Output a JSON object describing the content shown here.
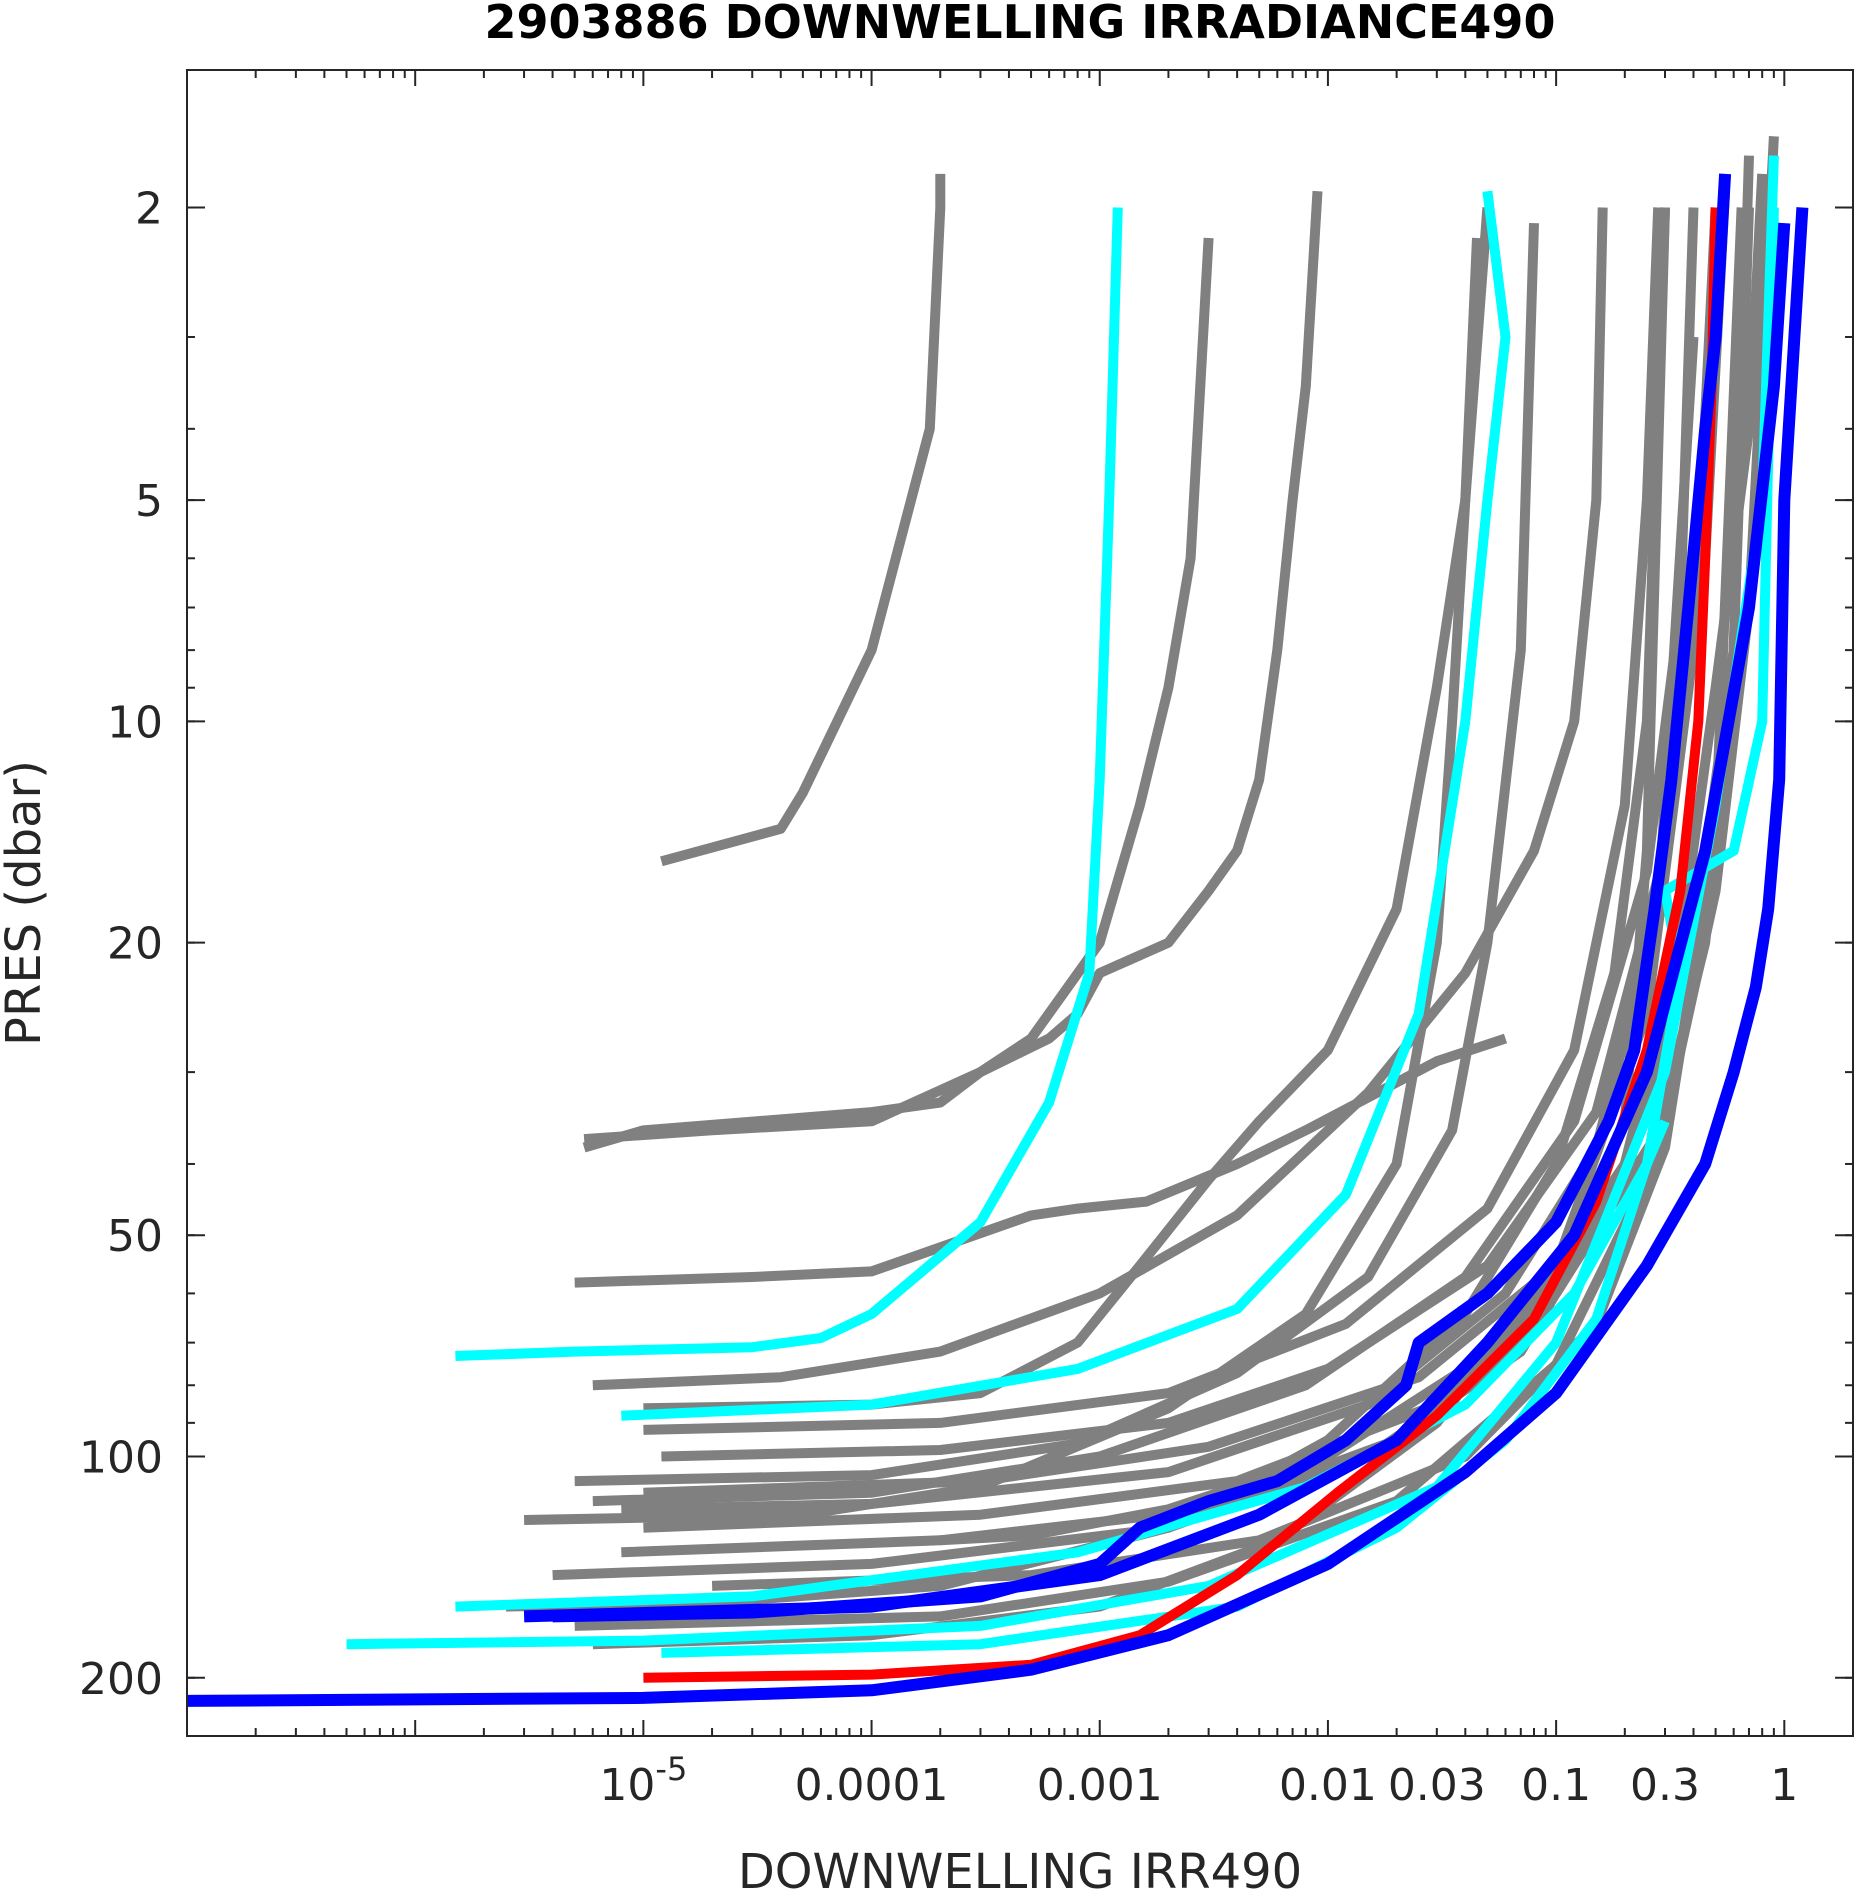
{
  "chart_data": {
    "type": "line",
    "title": "2903886  DOWNWELLING IRRADIANCE490",
    "xlabel": "DOWNWELLING IRR490",
    "ylabel": "PRES (dbar)",
    "x_scale": "log",
    "y_scale": "log",
    "y_reversed": true,
    "xlim": [
      1e-07,
      2
    ],
    "ylim": [
      1.3,
      240
    ],
    "x_tick_labels": [
      {
        "value": 1e-05,
        "label": "10",
        "exponent": "-5"
      },
      {
        "value": 0.0001,
        "label": "0.0001"
      },
      {
        "value": 0.001,
        "label": "0.001"
      },
      {
        "value": 0.01,
        "label": "0.01"
      },
      {
        "value": 0.03,
        "label": "0.03"
      },
      {
        "value": 0.1,
        "label": "0.1"
      },
      {
        "value": 0.3,
        "label": "0.3"
      },
      {
        "value": 1,
        "label": "1"
      }
    ],
    "y_ticks": [
      {
        "value": 2,
        "label": "2"
      },
      {
        "value": 5,
        "label": "5"
      },
      {
        "value": 10,
        "label": "10"
      },
      {
        "value": 20,
        "label": "20"
      },
      {
        "value": 50,
        "label": "50"
      },
      {
        "value": 100,
        "label": "100"
      },
      {
        "value": 200,
        "label": "200"
      }
    ],
    "colors": {
      "grey": "#808080",
      "cyan": "#00ffff",
      "blue": "#0000ff",
      "red": "#ff0000"
    },
    "series": [
      {
        "color": "grey",
        "x": [
          1.2e-05,
          4e-05,
          5e-05,
          0.0001,
          0.00018,
          0.0002,
          0.0002
        ],
        "y": [
          15.5,
          14,
          12.5,
          8,
          4,
          2,
          1.8
        ]
      },
      {
        "color": "grey",
        "x": [
          5.5e-06,
          1e-05,
          0.0001,
          0.0002,
          0.0003,
          0.0005,
          0.001,
          0.0015,
          0.002,
          0.0025,
          0.003
        ],
        "y": [
          38,
          36,
          34,
          33,
          30,
          27,
          20,
          13,
          9,
          6,
          2.2
        ]
      },
      {
        "color": "grey",
        "x": [
          5.5e-06,
          2e-05,
          0.0001,
          0.0003,
          0.0006,
          0.0008,
          0.001,
          0.002,
          0.003,
          0.004,
          0.005,
          0.006,
          0.007,
          0.008,
          0.009
        ],
        "y": [
          37,
          36,
          35,
          30,
          27,
          25,
          22,
          20,
          17,
          15,
          12,
          8,
          5,
          3.5,
          1.9
        ]
      },
      {
        "color": "grey",
        "x": [
          5e-06,
          3e-05,
          0.0001,
          0.0005,
          0.0008,
          0.0016,
          0.004,
          0.008,
          0.03,
          0.06
        ],
        "y": [
          58,
          57,
          56,
          47,
          46,
          45,
          40,
          36,
          29,
          27
        ]
      },
      {
        "color": "grey",
        "x": [
          1e-05,
          0.0001,
          0.0003,
          0.0008,
          0.0015,
          0.003,
          0.005,
          0.01,
          0.02,
          0.03,
          0.04,
          0.05
        ],
        "y": [
          86,
          85,
          82,
          70,
          55,
          42,
          35,
          28,
          18,
          9,
          5,
          2
        ]
      },
      {
        "color": "grey",
        "x": [
          6e-06,
          4e-05,
          0.0002,
          0.001,
          0.004,
          0.015,
          0.04,
          0.08,
          0.12,
          0.15,
          0.16
        ],
        "y": [
          80,
          78,
          72,
          60,
          47,
          32,
          22,
          15,
          10,
          5,
          2
        ]
      },
      {
        "color": "grey",
        "x": [
          5e-06,
          0.0001,
          0.0008,
          0.004,
          0.015,
          0.035,
          0.05,
          0.07,
          0.08
        ],
        "y": [
          108,
          106,
          96,
          77,
          57,
          36,
          20,
          8,
          2.1
        ]
      },
      {
        "color": "grey",
        "x": [
          3e-06,
          5e-05,
          0.0003,
          0.002,
          0.008,
          0.02,
          0.03,
          0.035,
          0.04,
          0.045
        ],
        "y": [
          122,
          120,
          110,
          86,
          64,
          40,
          20,
          10,
          5,
          2.2
        ]
      },
      {
        "color": "grey",
        "x": [
          2.5e-06,
          2e-05,
          0.0002,
          0.002,
          0.01,
          0.04,
          0.1,
          0.18,
          0.25,
          0.3
        ],
        "y": [
          160,
          158,
          150,
          125,
          95,
          64,
          40,
          22,
          10,
          2
        ]
      },
      {
        "color": "grey",
        "x": [
          6e-06,
          0.0001,
          0.001,
          0.006,
          0.03,
          0.1,
          0.25,
          0.4,
          0.5
        ],
        "y": [
          180,
          175,
          160,
          130,
          90,
          55,
          25,
          8,
          2
        ]
      },
      {
        "color": "grey",
        "x": [
          4e-06,
          0.0001,
          0.002,
          0.015,
          0.07,
          0.2,
          0.4,
          0.6,
          0.7
        ],
        "y": [
          145,
          140,
          125,
          100,
          72,
          42,
          20,
          8,
          1.7
        ]
      },
      {
        "color": "grey",
        "x": [
          8e-06,
          0.0002,
          0.003,
          0.02,
          0.08,
          0.2,
          0.35,
          0.5,
          0.7,
          0.8
        ],
        "y": [
          135,
          130,
          118,
          95,
          68,
          40,
          20,
          9,
          4,
          1.8
        ]
      },
      {
        "color": "grey",
        "x": [
          1e-05,
          0.0003,
          0.004,
          0.03,
          0.1,
          0.3,
          0.5,
          0.7,
          0.9
        ],
        "y": [
          125,
          120,
          108,
          85,
          60,
          35,
          17,
          7,
          1.6
        ]
      },
      {
        "color": "grey",
        "x": [
          5e-06,
          0.0002,
          0.002,
          0.02,
          0.1,
          0.25,
          0.45,
          0.6,
          0.7
        ],
        "y": [
          170,
          165,
          148,
          115,
          75,
          42,
          20,
          8,
          2
        ]
      },
      {
        "color": "grey",
        "x": [
          2e-05,
          0.0005,
          0.005,
          0.04,
          0.15,
          0.3,
          0.5,
          0.65
        ],
        "y": [
          150,
          145,
          130,
          100,
          66,
          38,
          14,
          2
        ]
      },
      {
        "color": "grey",
        "x": [
          6e-06,
          0.0001,
          0.001,
          0.008,
          0.04,
          0.12,
          0.25,
          0.35,
          0.4
        ],
        "y": [
          115,
          112,
          100,
          80,
          57,
          35,
          16,
          7,
          2
        ]
      },
      {
        "color": "grey",
        "x": [
          1.2e-05,
          0.0002,
          0.002,
          0.01,
          0.05,
          0.15,
          0.3,
          0.45,
          0.55
        ],
        "y": [
          100,
          98,
          90,
          76,
          55,
          34,
          15,
          6,
          1.9
        ]
      },
      {
        "color": "grey",
        "x": [
          1e-05,
          0.0002,
          0.002,
          0.012,
          0.05,
          0.12,
          0.2,
          0.25,
          0.28
        ],
        "y": [
          92,
          90,
          82,
          66,
          46,
          28,
          13,
          5,
          2
        ]
      },
      {
        "color": "grey",
        "x": [
          0.0002,
          0.0005,
          0.002,
          0.01,
          0.06,
          0.2,
          0.4
        ],
        "y": [
          130,
          128,
          118,
          100,
          70,
          40,
          18
        ]
      },
      {
        "color": "grey",
        "x": [
          1e-05,
          0.0003,
          0.003,
          0.025,
          0.1,
          0.2,
          0.25,
          0.3
        ],
        "y": [
          112,
          108,
          97,
          78,
          55,
          35,
          15,
          2
        ]
      },
      {
        "color": "grey",
        "x": [
          8e-06,
          0.0001,
          0.002,
          0.015,
          0.06,
          0.15,
          0.28,
          0.4
        ],
        "y": [
          118,
          116,
          105,
          85,
          60,
          38,
          18,
          3
        ]
      },
      {
        "color": "cyan",
        "x": [
          1.5e-06,
          5e-06,
          3e-05,
          6e-05,
          0.0001,
          0.0003,
          0.0006,
          0.0009,
          0.001,
          0.0011,
          0.0012
        ],
        "y": [
          73,
          72,
          71,
          69,
          64,
          48,
          33,
          22,
          12,
          5,
          2
        ]
      },
      {
        "color": "cyan",
        "x": [
          8e-06,
          0.0001,
          0.0008,
          0.004,
          0.012,
          0.025,
          0.04,
          0.05,
          0.06,
          0.05
        ],
        "y": [
          88,
          85,
          76,
          63,
          44,
          25,
          10,
          5,
          3,
          1.9
        ]
      },
      {
        "color": "cyan",
        "x": [
          5e-07,
          1e-05,
          0.0003,
          0.003,
          0.03,
          0.1,
          0.3,
          0.5,
          0.8,
          0.9
        ],
        "y": [
          180,
          178,
          170,
          150,
          110,
          70,
          30,
          13,
          5,
          1.7
        ]
      },
      {
        "color": "cyan",
        "x": [
          1.5e-06,
          3e-05,
          0.0008,
          0.008,
          0.04,
          0.12,
          0.25,
          0.35,
          0.3,
          0.6,
          0.8,
          0.9
        ],
        "y": [
          160,
          155,
          135,
          110,
          85,
          60,
          40,
          22,
          17,
          15,
          10,
          2
        ]
      },
      {
        "color": "cyan",
        "x": [
          1.2e-05,
          0.0003,
          0.004,
          0.02,
          0.06,
          0.15,
          0.25,
          0.3
        ],
        "y": [
          185,
          180,
          160,
          125,
          95,
          65,
          40,
          35
        ]
      },
      {
        "color": "blue",
        "x": [
          1e-07,
          1e-05,
          0.0001,
          0.0005,
          0.002,
          0.01,
          0.04,
          0.1,
          0.25,
          0.45,
          0.6,
          0.75,
          0.85,
          0.95,
          1,
          1.2
        ],
        "y": [
          215,
          213,
          208,
          195,
          175,
          140,
          105,
          82,
          55,
          40,
          30,
          23,
          18,
          12,
          5,
          2
        ]
      },
      {
        "color": "blue",
        "x": [
          4e-06,
          3e-05,
          0.0003,
          0.001,
          0.0015,
          0.003,
          0.006,
          0.012,
          0.022,
          0.025,
          0.05,
          0.1,
          0.17,
          0.22,
          0.27,
          0.32,
          0.38,
          0.45,
          0.5,
          0.55
        ],
        "y": [
          165,
          163,
          155,
          140,
          125,
          115,
          108,
          95,
          80,
          70,
          60,
          48,
          35,
          28,
          18,
          12,
          7,
          4,
          3,
          1.8
        ]
      },
      {
        "color": "blue",
        "x": [
          3e-06,
          0.0001,
          0.001,
          0.005,
          0.02,
          0.05,
          0.12,
          0.25,
          0.45,
          0.7,
          0.9,
          1.0
        ],
        "y": [
          165,
          160,
          145,
          120,
          95,
          70,
          50,
          30,
          15,
          7,
          3.5,
          2.1
        ]
      },
      {
        "color": "red",
        "x": [
          1e-05,
          0.0001,
          0.0005,
          0.0015,
          0.004,
          0.011,
          0.03,
          0.08,
          0.15,
          0.25,
          0.35,
          0.42,
          0.45,
          0.48,
          0.5
        ],
        "y": [
          200,
          198,
          192,
          175,
          145,
          112,
          88,
          65,
          45,
          28,
          17,
          10,
          6,
          3.5,
          2
        ]
      }
    ]
  }
}
